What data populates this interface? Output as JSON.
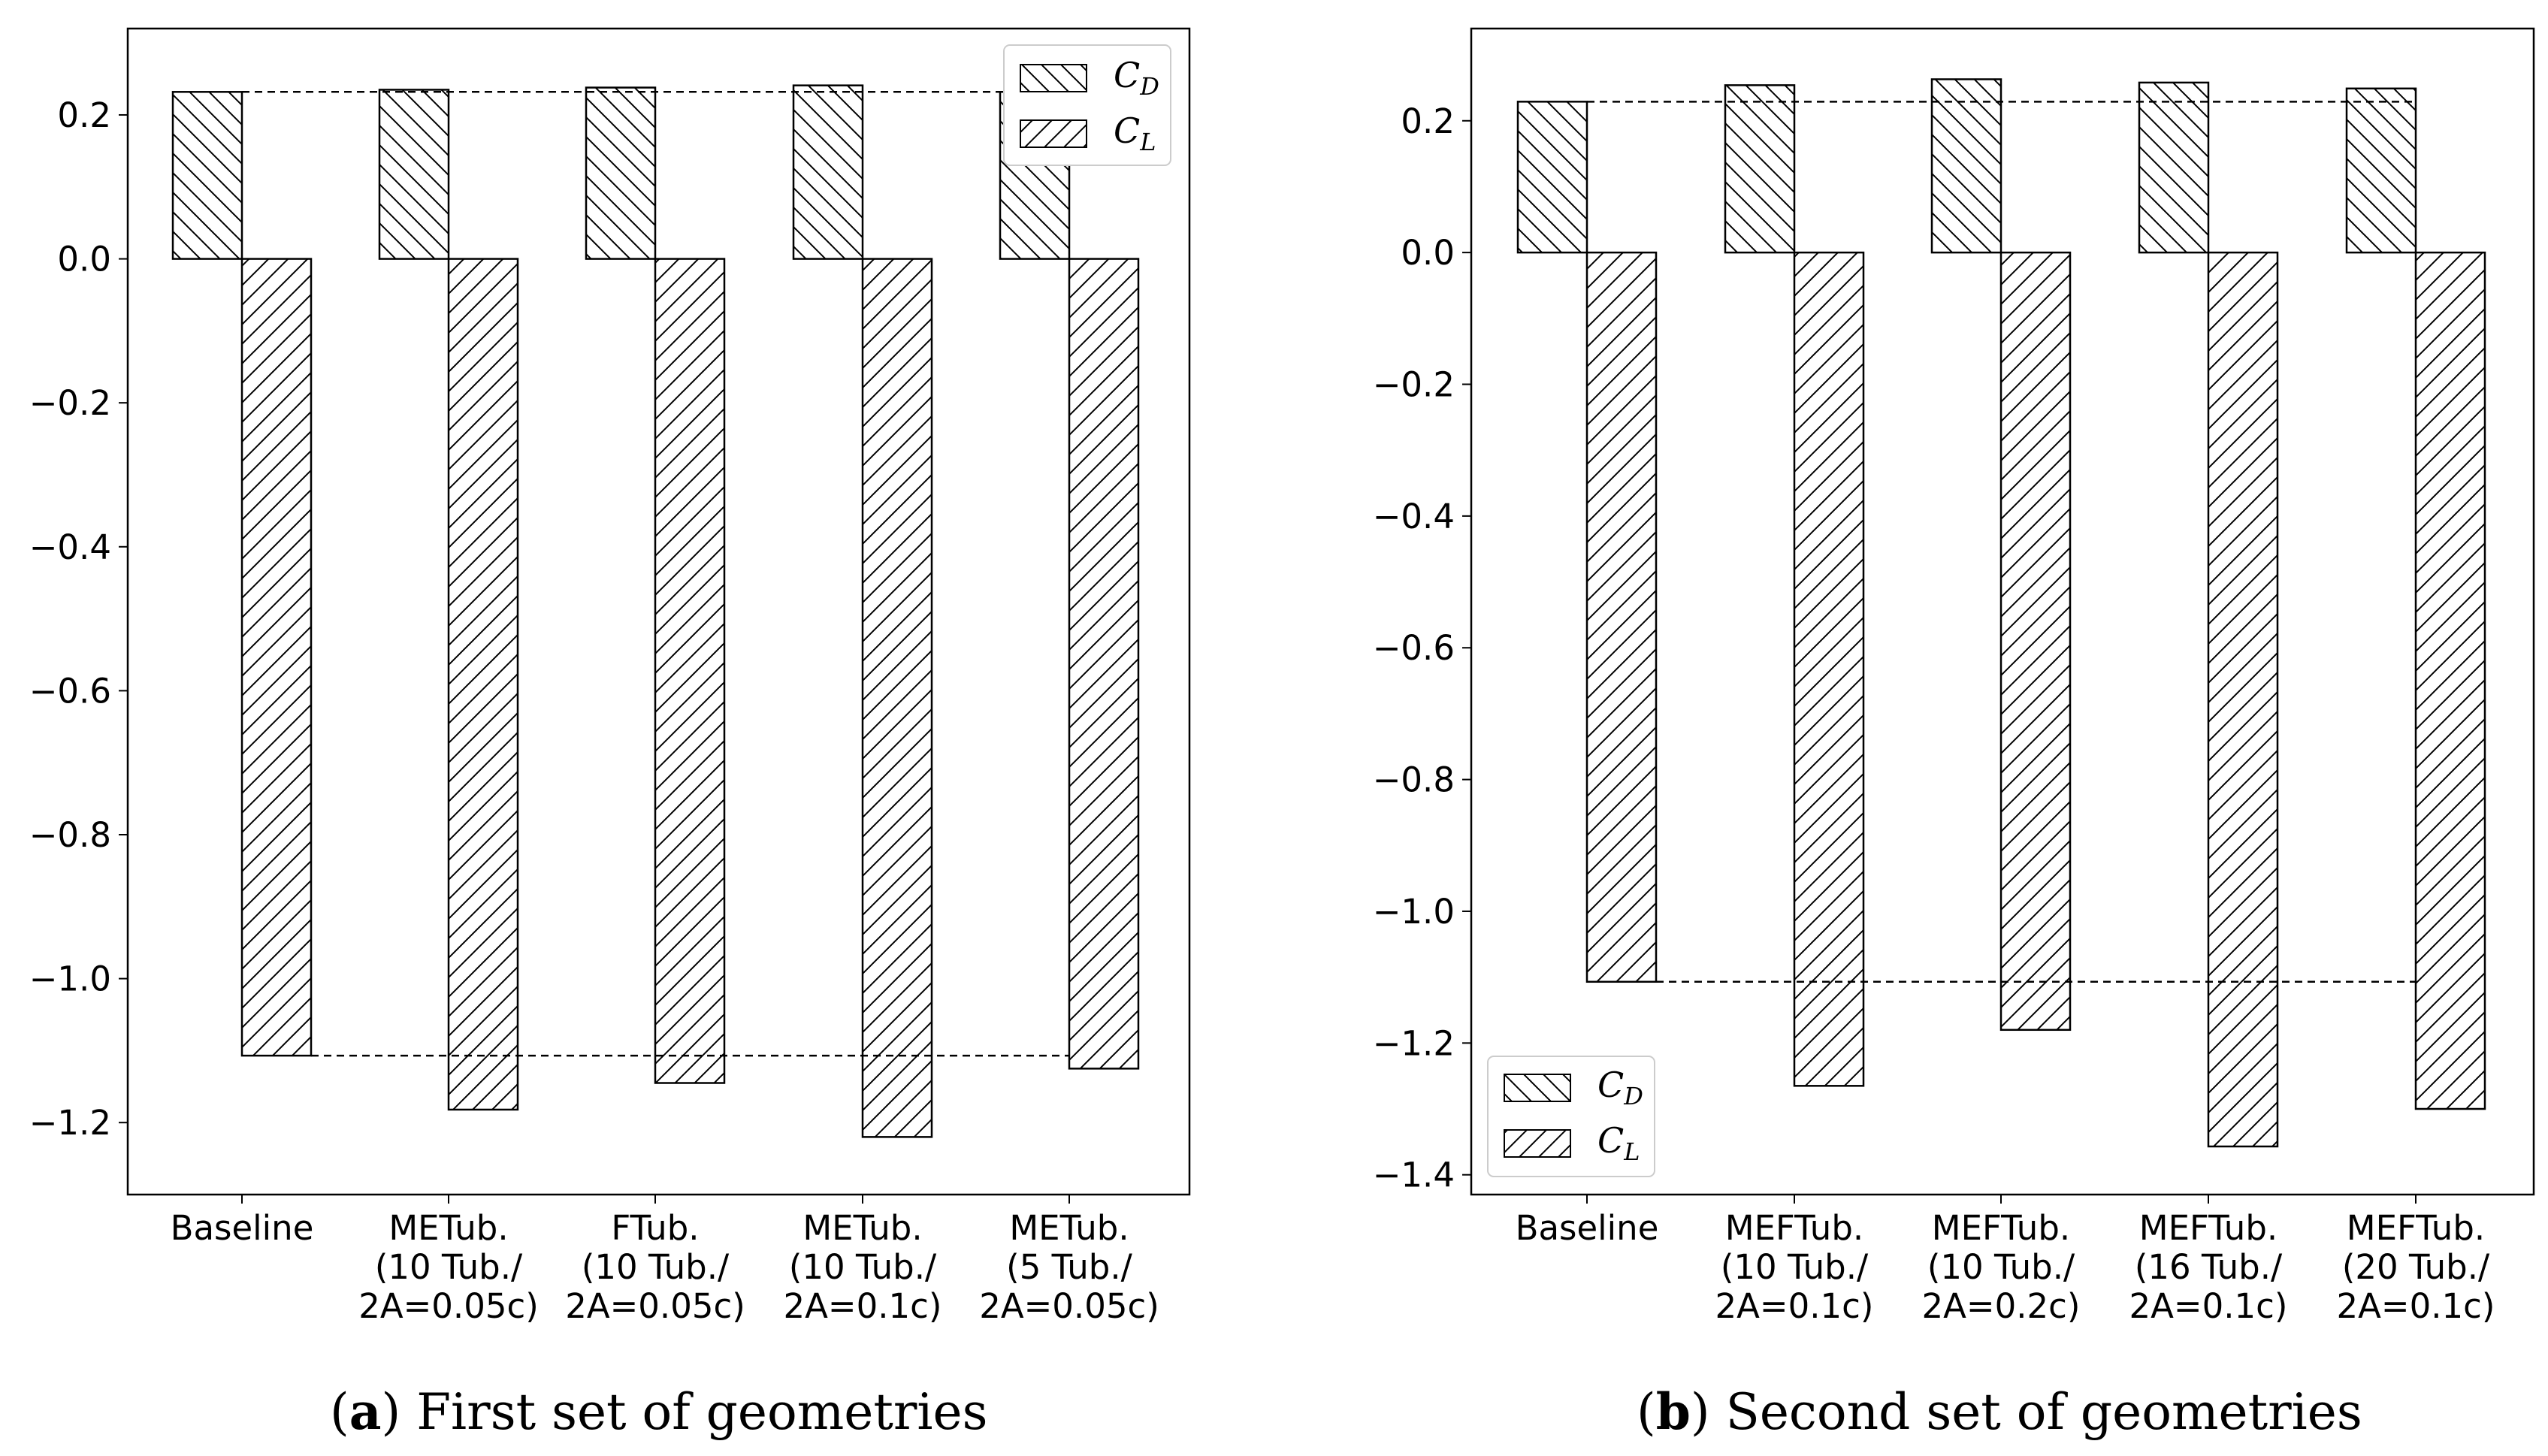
{
  "colors": {
    "stroke": "#000000",
    "background": "#ffffff",
    "legend_border": "#cccccc"
  },
  "chart_data": [
    {
      "type": "bar",
      "caption": {
        "letter": "a",
        "text": "First set of geometries"
      },
      "categories": [
        [
          "Baseline"
        ],
        [
          "METub.",
          "(10 Tub./",
          "2A=0.05c)"
        ],
        [
          "FTub.",
          "(10 Tub./",
          "2A=0.05c)"
        ],
        [
          "METub.",
          "(10 Tub./",
          "2A=0.1c)"
        ],
        [
          "METub.",
          "(5 Tub./",
          "2A=0.05c)"
        ]
      ],
      "series": [
        {
          "name": "C",
          "sub": "D",
          "hatch": "back",
          "values": [
            0.232,
            0.235,
            0.238,
            0.241,
            0.232
          ]
        },
        {
          "name": "C",
          "sub": "L",
          "hatch": "fwd",
          "values": [
            -1.107,
            -1.182,
            -1.145,
            -1.22,
            -1.125
          ]
        }
      ],
      "reference_lines": [
        0.232,
        -1.107
      ],
      "ylim": [
        -1.3,
        0.32
      ],
      "yticks": [
        0.2,
        0.0,
        -0.2,
        -0.4,
        -0.6,
        -0.8,
        -1.0,
        -1.2
      ],
      "ytick_labels": [
        "0.2",
        "0.0",
        "−0.2",
        "−0.4",
        "−0.6",
        "−0.8",
        "−1.0",
        "−1.2"
      ],
      "legend_position": "top-right",
      "xlabel": "",
      "ylabel": ""
    },
    {
      "type": "bar",
      "caption": {
        "letter": "b",
        "text": "Second set of geometries"
      },
      "categories": [
        [
          "Baseline"
        ],
        [
          "MEFTub.",
          "(10 Tub./",
          "2A=0.1c)"
        ],
        [
          "MEFTub.",
          "(10 Tub./",
          "2A=0.2c)"
        ],
        [
          "MEFTub.",
          "(16 Tub./",
          "2A=0.1c)"
        ],
        [
          "MEFTub.",
          "(20 Tub./",
          "2A=0.1c)"
        ]
      ],
      "series": [
        {
          "name": "C",
          "sub": "D",
          "hatch": "back",
          "values": [
            0.229,
            0.254,
            0.263,
            0.258,
            0.249
          ]
        },
        {
          "name": "C",
          "sub": "L",
          "hatch": "fwd",
          "values": [
            -1.107,
            -1.265,
            -1.18,
            -1.357,
            -1.3
          ]
        }
      ],
      "reference_lines": [
        0.229,
        -1.107
      ],
      "ylim": [
        -1.43,
        0.34
      ],
      "yticks": [
        0.2,
        0.0,
        -0.2,
        -0.4,
        -0.6,
        -0.8,
        -1.0,
        -1.2,
        -1.4
      ],
      "ytick_labels": [
        "0.2",
        "0.0",
        "−0.2",
        "−0.4",
        "−0.6",
        "−0.8",
        "−1.0",
        "−1.2",
        "−1.4"
      ],
      "legend_position": "bottom-left",
      "xlabel": "",
      "ylabel": ""
    }
  ]
}
